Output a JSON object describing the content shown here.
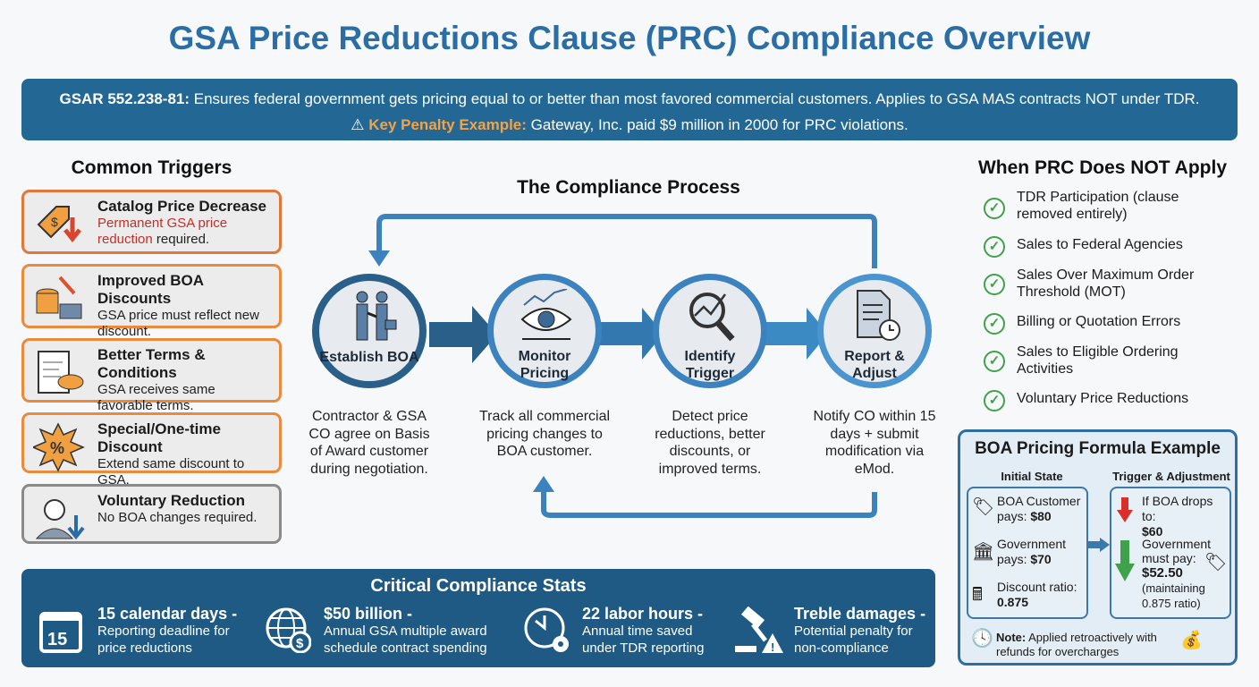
{
  "title": "GSA Price Reductions Clause (PRC) Compliance Overview",
  "banner": {
    "code": "GSAR 552.238-81:",
    "text": "Ensures federal government gets pricing equal to or better than most favored commercial customers. Applies to GSA MAS contracts NOT under TDR.",
    "penalty_label": "Key Penalty Example:",
    "penalty_text": "Gateway, Inc. paid $9 million in 2000 for PRC violations.",
    "icon": "warning-icon"
  },
  "triggers": {
    "heading": "Common Triggers",
    "items": [
      {
        "title": "Catalog Price Decrease",
        "desc_highlight": "Permanent GSA price reduction",
        "desc": " required.",
        "icon": "price-tag-down-icon"
      },
      {
        "title": "Improved BOA Discounts",
        "desc": "GSA price must reflect new discount.",
        "icon": "coins-icon"
      },
      {
        "title": "Better Terms & Conditions",
        "desc": "GSA receives same favorable terms.",
        "icon": "contract-handshake-icon"
      },
      {
        "title": "Special/One-time Discount",
        "desc": "Extend same discount to GSA.",
        "icon": "percent-badge-icon"
      },
      {
        "title": "Voluntary Reduction",
        "desc": "No BOA changes required.",
        "icon": "person-down-icon"
      }
    ]
  },
  "process": {
    "heading": "The Compliance Process",
    "steps": [
      {
        "label": "Establish BOA",
        "desc": "Contractor & GSA CO agree on Basis of Award customer during negotiation.",
        "icon": "handshake-icon"
      },
      {
        "label": "Monitor Pricing",
        "desc": "Track all commercial pricing changes to BOA customer.",
        "icon": "eye-chart-icon"
      },
      {
        "label": "Identify Trigger",
        "desc": "Detect price reductions, better discounts, or improved terms.",
        "icon": "magnifier-trend-icon"
      },
      {
        "label": "Report & Adjust",
        "desc": "Notify CO within 15 days + submit modification via eMod.",
        "icon": "document-clock-icon"
      }
    ]
  },
  "exceptions": {
    "heading": "When PRC Does NOT Apply",
    "items": [
      "TDR Participation (clause removed entirely)",
      "Sales to Federal Agencies",
      "Sales Over Maximum Order Threshold (MOT)",
      "Billing or Quotation Errors",
      "Sales to Eligible Ordering Activities",
      "Voluntary Price Reductions"
    ]
  },
  "boa": {
    "heading": "BOA Pricing Formula Example",
    "initial_heading": "Initial State",
    "trigger_heading": "Trigger & Adjustment",
    "customer_label": "BOA Customer pays:",
    "customer_value": "$80",
    "gov_label": "Government pays:",
    "gov_value": "$70",
    "ratio_label": "Discount ratio:",
    "ratio_value": "0.875",
    "drop_label": "If BOA drops to:",
    "drop_value": "$60",
    "must_label": "Government must pay:",
    "must_value": "$52.50",
    "must_note": "(maintaining 0.875 ratio)",
    "note_label": "Note:",
    "note_text": "Applied retroactively with refunds for overcharges"
  },
  "stats": {
    "heading": "Critical Compliance Stats",
    "items": [
      {
        "title": "15 calendar days -",
        "desc": "Reporting deadline for price reductions",
        "icon": "calendar-icon",
        "icon_text": "15"
      },
      {
        "title": "$50 billion -",
        "desc": "Annual GSA multiple award schedule contract spending",
        "icon": "globe-dollar-icon"
      },
      {
        "title": "22 labor hours -",
        "desc": "Annual time saved under TDR reporting",
        "icon": "clock-gear-icon"
      },
      {
        "title": "Treble damages -",
        "desc": "Potential penalty for non-compliance",
        "icon": "gavel-warning-icon"
      }
    ]
  },
  "colors": {
    "title": "#2b6ea6",
    "banner": "#236895",
    "accent_orange": "#e98a3c",
    "check_green": "#3fa14a",
    "stats_bg": "#1f5a84"
  }
}
